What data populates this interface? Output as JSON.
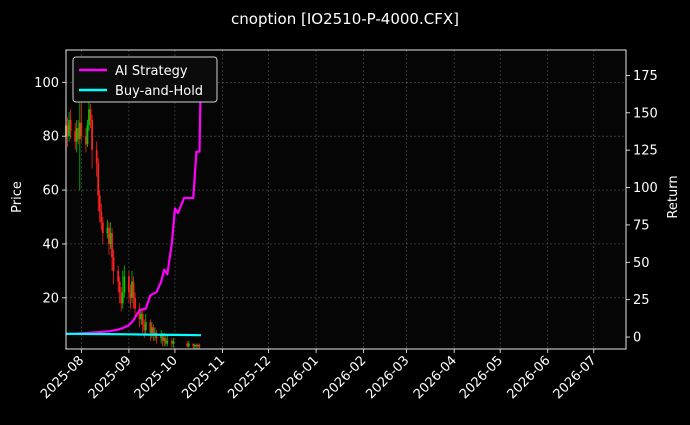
{
  "chart_data": {
    "type": "line",
    "title": "cnoption [IO2510-P-4000.CFX]",
    "xlabel": "",
    "ylabel": "Price",
    "ylabel_right": "Return",
    "x_ticks": [
      "2025-08",
      "2025-09",
      "2025-10",
      "2025-11",
      "2025-12",
      "2026-01",
      "2026-02",
      "2026-03",
      "2026-04",
      "2026-05",
      "2026-06",
      "2026-07"
    ],
    "x_range": [
      "2025-07-22",
      "2026-07-22"
    ],
    "ylim_left": [
      1,
      112
    ],
    "ylim_right": [
      -8,
      192
    ],
    "y_ticks_left": [
      20,
      40,
      60,
      80,
      100
    ],
    "y_ticks_right": [
      0,
      25,
      50,
      75,
      100,
      125,
      150,
      175
    ],
    "grid": true,
    "legend_position": "top-left",
    "colors": {
      "up": "#00cc00",
      "down": "#ff2020",
      "strategy": "#ff00ff",
      "hold": "#00ffff",
      "background": "#000000"
    },
    "series": [
      {
        "name": "AI Strategy",
        "color": "#ff00ff",
        "axis": "right",
        "points": [
          [
            "2025-07-22",
            2
          ],
          [
            "2025-08-01",
            2.5
          ],
          [
            "2025-08-08",
            3
          ],
          [
            "2025-08-15",
            3.5
          ],
          [
            "2025-08-20",
            4
          ],
          [
            "2025-08-25",
            5
          ],
          [
            "2025-08-28",
            6
          ],
          [
            "2025-09-01",
            8
          ],
          [
            "2025-09-03",
            10
          ],
          [
            "2025-09-05",
            13
          ],
          [
            "2025-09-08",
            18
          ],
          [
            "2025-09-12",
            19
          ],
          [
            "2025-09-15",
            28
          ],
          [
            "2025-09-19",
            30
          ],
          [
            "2025-09-22",
            37
          ],
          [
            "2025-09-24",
            45
          ],
          [
            "2025-09-26",
            42
          ],
          [
            "2025-09-29",
            63
          ],
          [
            "2025-10-01",
            86
          ],
          [
            "2025-10-03",
            83
          ],
          [
            "2025-10-07",
            93
          ],
          [
            "2025-10-13",
            93
          ],
          [
            "2025-10-15",
            124
          ],
          [
            "2025-10-17",
            124
          ],
          [
            "2025-10-18",
            180
          ]
        ]
      },
      {
        "name": "Buy-and-Hold",
        "color": "#00ffff",
        "axis": "right",
        "points": [
          [
            "2025-07-22",
            2.2
          ],
          [
            "2025-08-20",
            2.0
          ],
          [
            "2025-09-15",
            1.6
          ],
          [
            "2025-10-01",
            1.4
          ],
          [
            "2025-10-18",
            1.2
          ]
        ]
      }
    ],
    "candles": [
      [
        "2025-07-22",
        80,
        84,
        88,
        75
      ],
      [
        "2025-07-23",
        84,
        80,
        87,
        76
      ],
      [
        "2025-07-24",
        80,
        86,
        89,
        78
      ],
      [
        "2025-07-25",
        86,
        82,
        90,
        79
      ],
      [
        "2025-07-28",
        82,
        78,
        85,
        75
      ],
      [
        "2025-07-29",
        78,
        83,
        86,
        74
      ],
      [
        "2025-07-30",
        83,
        79,
        86,
        77
      ],
      [
        "2025-07-31",
        79,
        85,
        100,
        60
      ],
      [
        "2025-08-01",
        85,
        80,
        92,
        78
      ],
      [
        "2025-08-04",
        80,
        77,
        83,
        74
      ],
      [
        "2025-08-05",
        77,
        84,
        86,
        76
      ],
      [
        "2025-08-06",
        84,
        90,
        96,
        82
      ],
      [
        "2025-08-07",
        90,
        86,
        92,
        83
      ],
      [
        "2025-08-08",
        86,
        75,
        88,
        68
      ],
      [
        "2025-08-11",
        75,
        70,
        78,
        65
      ],
      [
        "2025-08-12",
        70,
        58,
        72,
        52
      ],
      [
        "2025-08-13",
        58,
        52,
        60,
        48
      ],
      [
        "2025-08-14",
        52,
        48,
        55,
        45
      ],
      [
        "2025-08-15",
        48,
        44,
        50,
        40
      ],
      [
        "2025-08-18",
        44,
        46,
        49,
        42
      ],
      [
        "2025-08-19",
        46,
        40,
        48,
        36
      ],
      [
        "2025-08-20",
        40,
        44,
        48,
        38
      ],
      [
        "2025-08-21",
        44,
        35,
        46,
        30
      ],
      [
        "2025-08-22",
        35,
        30,
        38,
        25
      ],
      [
        "2025-08-25",
        30,
        26,
        32,
        22
      ],
      [
        "2025-08-26",
        26,
        22,
        28,
        18
      ],
      [
        "2025-08-27",
        22,
        18,
        24,
        15
      ],
      [
        "2025-08-28",
        18,
        22,
        30,
        16
      ],
      [
        "2025-08-29",
        22,
        28,
        32,
        20
      ],
      [
        "2025-09-01",
        28,
        22,
        30,
        18
      ],
      [
        "2025-09-02",
        22,
        20,
        25,
        16
      ],
      [
        "2025-09-03",
        20,
        26,
        30,
        18
      ],
      [
        "2025-09-04",
        26,
        20,
        28,
        16
      ],
      [
        "2025-09-05",
        20,
        16,
        22,
        13
      ],
      [
        "2025-09-08",
        16,
        12,
        18,
        9
      ],
      [
        "2025-09-09",
        12,
        14,
        16,
        10
      ],
      [
        "2025-09-10",
        14,
        10,
        16,
        7
      ],
      [
        "2025-09-11",
        10,
        8,
        12,
        5
      ],
      [
        "2025-09-12",
        8,
        11,
        14,
        6
      ],
      [
        "2025-09-15",
        11,
        7,
        12,
        4
      ],
      [
        "2025-09-16",
        7,
        9,
        11,
        5
      ],
      [
        "2025-09-17",
        9,
        6,
        10,
        4
      ],
      [
        "2025-09-18",
        6,
        7,
        9,
        4
      ],
      [
        "2025-09-19",
        7,
        5,
        8,
        3
      ],
      [
        "2025-09-22",
        5,
        6,
        8,
        3
      ],
      [
        "2025-09-23",
        6,
        4,
        7,
        2
      ],
      [
        "2025-09-24",
        4,
        5,
        7,
        2
      ],
      [
        "2025-09-25",
        5,
        3,
        6,
        2
      ],
      [
        "2025-09-26",
        3,
        4,
        6,
        2
      ],
      [
        "2025-09-29",
        4,
        3,
        5,
        1.5
      ],
      [
        "2025-09-30",
        3,
        4,
        5,
        1.5
      ],
      [
        "2025-10-09",
        3,
        2,
        4,
        1.5
      ],
      [
        "2025-10-10",
        2,
        3,
        4,
        1.5
      ],
      [
        "2025-10-13",
        3,
        2,
        3,
        1.2
      ],
      [
        "2025-10-14",
        2,
        2.5,
        3,
        1.2
      ],
      [
        "2025-10-15",
        2.5,
        2,
        3,
        1.2
      ],
      [
        "2025-10-16",
        2,
        2.5,
        3,
        1.2
      ],
      [
        "2025-10-17",
        2.5,
        2,
        3,
        1.2
      ]
    ]
  }
}
